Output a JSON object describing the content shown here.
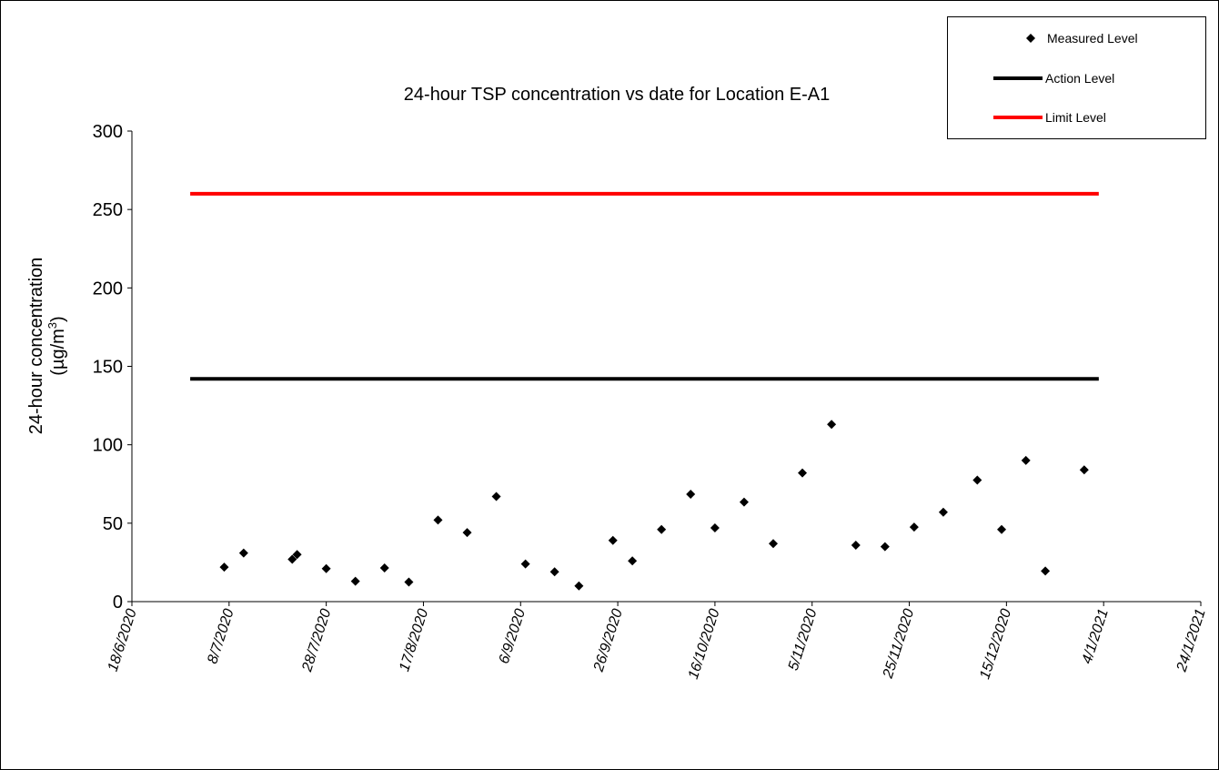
{
  "chart_data": {
    "type": "scatter",
    "title": "24-hour TSP concentration vs date for Location E-A1",
    "ylabel_line1": "24-hour concentration",
    "ylabel_line2_base": "(µg/m",
    "ylabel_line2_sup": "3",
    "ylabel_line2_end": ")",
    "ylim": [
      0,
      300
    ],
    "yticks": [
      0,
      50,
      100,
      150,
      200,
      250,
      300
    ],
    "xlim": [
      "2020-06-18",
      "2021-01-24"
    ],
    "xticks": [
      {
        "date": "2020-06-18",
        "label": "18/6/2020"
      },
      {
        "date": "2020-07-08",
        "label": "8/7/2020"
      },
      {
        "date": "2020-07-28",
        "label": "28/7/2020"
      },
      {
        "date": "2020-08-17",
        "label": "17/8/2020"
      },
      {
        "date": "2020-09-06",
        "label": "6/9/2020"
      },
      {
        "date": "2020-09-26",
        "label": "26/9/2020"
      },
      {
        "date": "2020-10-16",
        "label": "16/10/2020"
      },
      {
        "date": "2020-11-05",
        "label": "5/11/2020"
      },
      {
        "date": "2020-11-25",
        "label": "25/11/2020"
      },
      {
        "date": "2020-12-15",
        "label": "15/12/2020"
      },
      {
        "date": "2021-01-04",
        "label": "4/1/2021"
      },
      {
        "date": "2021-01-24",
        "label": "24/1/2021"
      }
    ],
    "grid": false,
    "legend_position": "top-right",
    "series": [
      {
        "name": "Measured Level",
        "kind": "points",
        "color": "#000000",
        "points": [
          {
            "x": "2020-07-07",
            "y": 22
          },
          {
            "x": "2020-07-11",
            "y": 31
          },
          {
            "x": "2020-07-21",
            "y": 27
          },
          {
            "x": "2020-07-22",
            "y": 30
          },
          {
            "x": "2020-07-28",
            "y": 21
          },
          {
            "x": "2020-08-03",
            "y": 13
          },
          {
            "x": "2020-08-09",
            "y": 21.5
          },
          {
            "x": "2020-08-14",
            "y": 12.5
          },
          {
            "x": "2020-08-20",
            "y": 52
          },
          {
            "x": "2020-08-26",
            "y": 44
          },
          {
            "x": "2020-09-01",
            "y": 67
          },
          {
            "x": "2020-09-07",
            "y": 24
          },
          {
            "x": "2020-09-13",
            "y": 19
          },
          {
            "x": "2020-09-18",
            "y": 10
          },
          {
            "x": "2020-09-25",
            "y": 39
          },
          {
            "x": "2020-09-29",
            "y": 26
          },
          {
            "x": "2020-10-05",
            "y": 46
          },
          {
            "x": "2020-10-11",
            "y": 68.5
          },
          {
            "x": "2020-10-16",
            "y": 47
          },
          {
            "x": "2020-10-22",
            "y": 63.5
          },
          {
            "x": "2020-10-28",
            "y": 37
          },
          {
            "x": "2020-11-03",
            "y": 82
          },
          {
            "x": "2020-11-09",
            "y": 113
          },
          {
            "x": "2020-11-14",
            "y": 36
          },
          {
            "x": "2020-11-20",
            "y": 35
          },
          {
            "x": "2020-11-26",
            "y": 47.5
          },
          {
            "x": "2020-12-02",
            "y": 57
          },
          {
            "x": "2020-12-09",
            "y": 77.5
          },
          {
            "x": "2020-12-14",
            "y": 46
          },
          {
            "x": "2020-12-19",
            "y": 90
          },
          {
            "x": "2020-12-23",
            "y": 19.5
          },
          {
            "x": "2020-12-31",
            "y": 84
          }
        ]
      },
      {
        "name": "Action Level",
        "kind": "line",
        "color": "#000000",
        "x": [
          "2020-06-30",
          "2021-01-03"
        ],
        "y": 142
      },
      {
        "name": "Limit Level",
        "kind": "line",
        "color": "#ff0000",
        "x": [
          "2020-06-30",
          "2021-01-03"
        ],
        "y": 260
      }
    ]
  }
}
